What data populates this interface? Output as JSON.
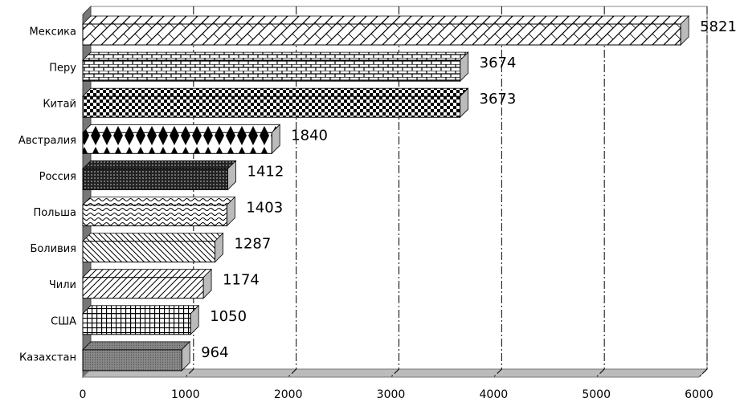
{
  "chart_data": {
    "type": "bar",
    "orientation": "horizontal",
    "categories": [
      "Мексика",
      "Перу",
      "Китай",
      "Австралия",
      "Россия",
      "Польша",
      "Боливия",
      "Чили",
      "США",
      "Казахстан"
    ],
    "values": [
      5821,
      3674,
      3673,
      1840,
      1412,
      1403,
      1287,
      1174,
      1050,
      964
    ],
    "xlim": [
      0,
      6000
    ],
    "xticks": [
      0,
      1000,
      2000,
      3000,
      4000,
      5000,
      6000
    ],
    "grid": true
  }
}
